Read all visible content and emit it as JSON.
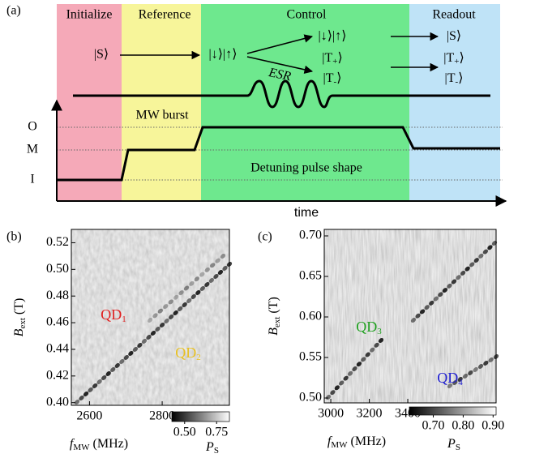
{
  "panel_a": {
    "label": "(a)",
    "phases": [
      "Initialize",
      "Reference",
      "Control",
      "Readout"
    ],
    "levels": [
      "O",
      "M",
      "I"
    ],
    "x_label": "time",
    "mw_label": "MW burst",
    "esr": "ESR",
    "pulse_label": "Detuning pulse shape",
    "states": {
      "initial": "|S⟩",
      "reference": "|↓⟩|↑⟩",
      "control": [
        {
          "pre": "|↓⟩|↑⟩",
          "sub": null
        },
        {
          "pre": "|T",
          "sub": "+",
          "post": "⟩"
        },
        {
          "pre": "|T",
          "sub": "-",
          "post": "⟩"
        }
      ],
      "readout": [
        {
          "pre": "|S⟩",
          "sub": null
        },
        {
          "pre": "|T",
          "sub": "+",
          "post": "⟩"
        },
        {
          "pre": "|T",
          "sub": "-",
          "post": "⟩"
        }
      ]
    }
  },
  "panel_b": {
    "label": "(b)",
    "y_label": {
      "main": "B",
      "sub": "ext",
      "unit": " (T)"
    },
    "x_label": {
      "main": "f",
      "sub": "MW",
      "unit": " (MHz)"
    },
    "xlim": [
      2550,
      2985
    ],
    "xticks": [
      2600,
      2800
    ],
    "ylim": [
      0.398,
      0.53
    ],
    "yticks": [
      {
        "value": 0.4,
        "label": "0.40"
      },
      0.42,
      0.44,
      0.46,
      0.48,
      {
        "value": 0.5,
        "label": "0.50"
      },
      0.52
    ],
    "colorbar": {
      "lim": [
        0.4,
        0.85
      ],
      "ticks": [
        {
          "value": 0.5,
          "label": "0.50"
        },
        0.75
      ],
      "label": {
        "main": "P",
        "sub": "S"
      }
    },
    "annotations": [
      {
        "main": "QD",
        "sub": "1",
        "color": "#e02020"
      },
      {
        "main": "QD",
        "sub": "2",
        "color": "#e8c020"
      }
    ]
  },
  "panel_c": {
    "label": "(c)",
    "y_label": {
      "main": "B",
      "sub": "ext",
      "unit": " (T)"
    },
    "x_label": {
      "main": "f",
      "sub": "MW",
      "unit": " (MHz)"
    },
    "xlim": [
      2966,
      3859
    ],
    "xticks": [
      3000,
      3200,
      3400
    ],
    "ylim": [
      0.494,
      0.708
    ],
    "yticks": [
      {
        "value": 0.5,
        "label": "0.50"
      },
      0.55,
      {
        "value": 0.6,
        "label": "0.60"
      },
      0.65,
      {
        "value": 0.7,
        "label": "0.70"
      }
    ],
    "colorbar": {
      "lim": [
        0.62,
        0.91
      ],
      "ticks": [
        {
          "value": 0.7,
          "label": "0.70"
        },
        {
          "value": 0.8,
          "label": "0.80"
        },
        {
          "value": 0.9,
          "label": "0.90"
        }
      ],
      "label": {
        "main": "P",
        "sub": "S"
      }
    },
    "annotations": [
      {
        "main": "QD",
        "sub": "3",
        "color": "#20a020"
      },
      {
        "main": "QD",
        "sub": "4",
        "color": "#2020d0"
      }
    ]
  }
}
